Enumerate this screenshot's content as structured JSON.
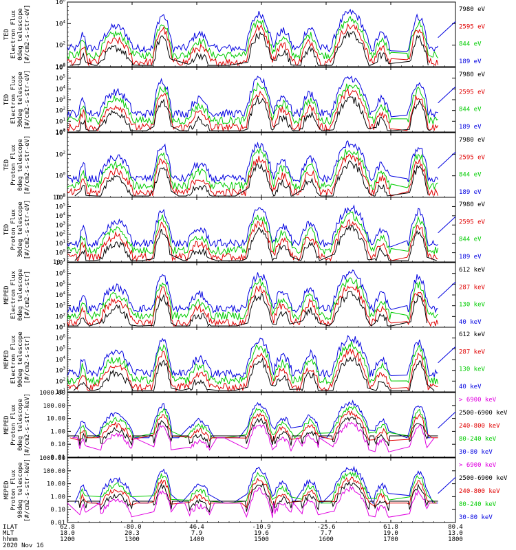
{
  "chart_data": {
    "type": "line",
    "date_label": "2020 Nov 16",
    "x_axis": {
      "row_labels": [
        "ILAT",
        "MLT",
        "hhmm"
      ],
      "ilat": [
        "62.8",
        "-80.0",
        "46.4",
        "-10.9",
        "-25.6",
        "61.8",
        "80.4"
      ],
      "mlt": [
        "18.0",
        "20.3",
        "7.9",
        "19.6",
        "7.7",
        "19.0",
        "13.0"
      ],
      "hhmm": [
        "1200",
        "1300",
        "1400",
        "1500",
        "1600",
        "1700",
        "1800"
      ],
      "xlim": [
        1200,
        1800
      ]
    },
    "panels": [
      {
        "ylabel": [
          "TED",
          "Electron Flux",
          "0deg telescope",
          "[#/cm2-s-str-eV]"
        ],
        "ylim_exp": [
          0,
          6
        ],
        "ticks": [
          "10^0",
          "10^2",
          "10^4",
          "10^6"
        ],
        "legend": [
          {
            "label": "7980 eV",
            "color": "#000000"
          },
          {
            "label": "2595 eV",
            "color": "#e00000"
          },
          {
            "label": "844 eV",
            "color": "#00cc00"
          },
          {
            "label": "189 eV",
            "color": "#0000e0"
          }
        ]
      },
      {
        "ylabel": [
          "TED",
          "Electron Flux",
          "30deg telescope",
          "[#/cm2-s-str-eV]"
        ],
        "ylim_exp": [
          0,
          6
        ],
        "ticks": [
          "10^0",
          "10^1",
          "10^2",
          "10^3",
          "10^4",
          "10^5",
          "10^6"
        ],
        "legend": [
          {
            "label": "7980 eV",
            "color": "#000000"
          },
          {
            "label": "2595 eV",
            "color": "#e00000"
          },
          {
            "label": "844 eV",
            "color": "#00cc00"
          },
          {
            "label": "189 eV",
            "color": "#0000e0"
          }
        ]
      },
      {
        "ylabel": [
          "TED",
          "Proton Flux",
          "0deg telescope",
          "[#/cm2-s-str-eV]"
        ],
        "ylim_exp": [
          -2,
          4
        ],
        "ticks": [
          "10^-2",
          "10^0",
          "10^2",
          "10^4"
        ],
        "legend": [
          {
            "label": "7980 eV",
            "color": "#000000"
          },
          {
            "label": "2595 eV",
            "color": "#e00000"
          },
          {
            "label": "844 eV",
            "color": "#00cc00"
          },
          {
            "label": "189 eV",
            "color": "#0000e0"
          }
        ]
      },
      {
        "ylabel": [
          "TED",
          "Proton Flux",
          "30deg telescope",
          "[#/cm2-s-str-eV]"
        ],
        "ylim_exp": [
          -1,
          6
        ],
        "ticks": [
          "10^-1",
          "10^0",
          "10^1",
          "10^2",
          "10^3",
          "10^4",
          "10^5",
          "10^6"
        ],
        "legend": [
          {
            "label": "7980 eV",
            "color": "#000000"
          },
          {
            "label": "2595 eV",
            "color": "#e00000"
          },
          {
            "label": "844 eV",
            "color": "#00cc00"
          },
          {
            "label": "189 eV",
            "color": "#0000e0"
          }
        ]
      },
      {
        "ylabel": [
          "MEPED",
          "Electron Flux",
          "0deg telescope",
          "[#/cm2-s-str]"
        ],
        "ylim_exp": [
          1,
          7
        ],
        "ticks": [
          "10^1",
          "10^2",
          "10^3",
          "10^4",
          "10^5",
          "10^6",
          "10^7"
        ],
        "legend": [
          {
            "label": "612 keV",
            "color": "#000000"
          },
          {
            "label": "287 keV",
            "color": "#e00000"
          },
          {
            "label": "130 keV",
            "color": "#00cc00"
          },
          {
            "label": "40 keV",
            "color": "#0000e0"
          }
        ]
      },
      {
        "ylabel": [
          "MEPED",
          "Electron Flux",
          "90deg telescope",
          "[#/cm2-s-str]"
        ],
        "ylim_exp": [
          1,
          7
        ],
        "ticks": [
          "10^1",
          "10^2",
          "10^3",
          "10^4",
          "10^5",
          "10^6",
          "10^7"
        ],
        "legend": [
          {
            "label": "612 keV",
            "color": "#000000"
          },
          {
            "label": "287 keV",
            "color": "#e00000"
          },
          {
            "label": "130 keV",
            "color": "#00cc00"
          },
          {
            "label": "40 keV",
            "color": "#0000e0"
          }
        ]
      },
      {
        "ylabel": [
          "MEPED",
          "Proton Flux",
          "0deg telescope",
          "[#/cm2-s-str-keV]"
        ],
        "ylim_exp": [
          -2,
          3
        ],
        "ticks": [
          "0.01",
          "0.10",
          "1.00",
          "10.00",
          "100.00",
          "1000.00"
        ],
        "legend": [
          {
            "label": "> 6900 keV",
            "color": "#e000e0"
          },
          {
            "label": "2500-6900 keV",
            "color": "#000000"
          },
          {
            "label": "240-800 keV",
            "color": "#e00000"
          },
          {
            "label": "80-240 keV",
            "color": "#00cc00"
          },
          {
            "label": "30-80 keV",
            "color": "#0000e0"
          }
        ]
      },
      {
        "ylabel": [
          "MEPED",
          "Proton Flux",
          "90deg telescope",
          "[#/cm2-s-str-keV]"
        ],
        "ylim_exp": [
          -2,
          3
        ],
        "ticks": [
          "0.01",
          "0.10",
          "1.00",
          "10.00",
          "100.00",
          "1000.00"
        ],
        "legend": [
          {
            "label": "> 6900 keV",
            "color": "#e000e0"
          },
          {
            "label": "2500-6900 keV",
            "color": "#000000"
          },
          {
            "label": "240-800 keV",
            "color": "#e00000"
          },
          {
            "label": "80-240 keV",
            "color": "#00cc00"
          },
          {
            "label": "30-80 keV",
            "color": "#0000e0"
          }
        ]
      }
    ]
  }
}
